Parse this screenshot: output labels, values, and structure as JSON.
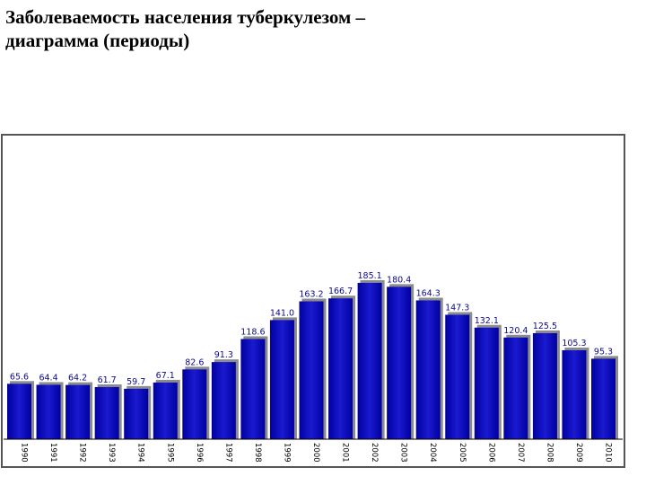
{
  "title": {
    "line1": "Заболеваемость населения туберкулезом –",
    "line2": "диаграмма (периоды)"
  },
  "chart_data": {
    "type": "bar",
    "categories": [
      "1990",
      "1991",
      "1992",
      "1993",
      "1994",
      "1995",
      "1996",
      "1997",
      "1998",
      "1999",
      "2000",
      "2001",
      "2002",
      "2003",
      "2004",
      "2005",
      "2006",
      "2007",
      "2008",
      "2009",
      "2010"
    ],
    "values": [
      65.6,
      64.4,
      64.2,
      61.7,
      59.7,
      67.1,
      82.6,
      91.3,
      118.6,
      141.0,
      163.2,
      166.7,
      185.1,
      180.4,
      164.3,
      147.3,
      132.1,
      120.4,
      125.5,
      105.3,
      95.3
    ],
    "value_labels": [
      "65.6",
      "64.4",
      "64.2",
      "61.7",
      "59.7",
      "67.1",
      "82.6",
      "91.3",
      "118.6",
      "141.0",
      "163.2",
      "166.7",
      "185.1",
      "180.4",
      "164.3",
      "147.3",
      "132.1",
      "120.4",
      "125.5",
      "105.3",
      "95.3"
    ],
    "ylim": [
      0,
      190
    ],
    "grid": false,
    "bar_color": "#0a0ab4",
    "bar_shadow_color": "#8c8c8c",
    "frame_color": "#555555"
  }
}
